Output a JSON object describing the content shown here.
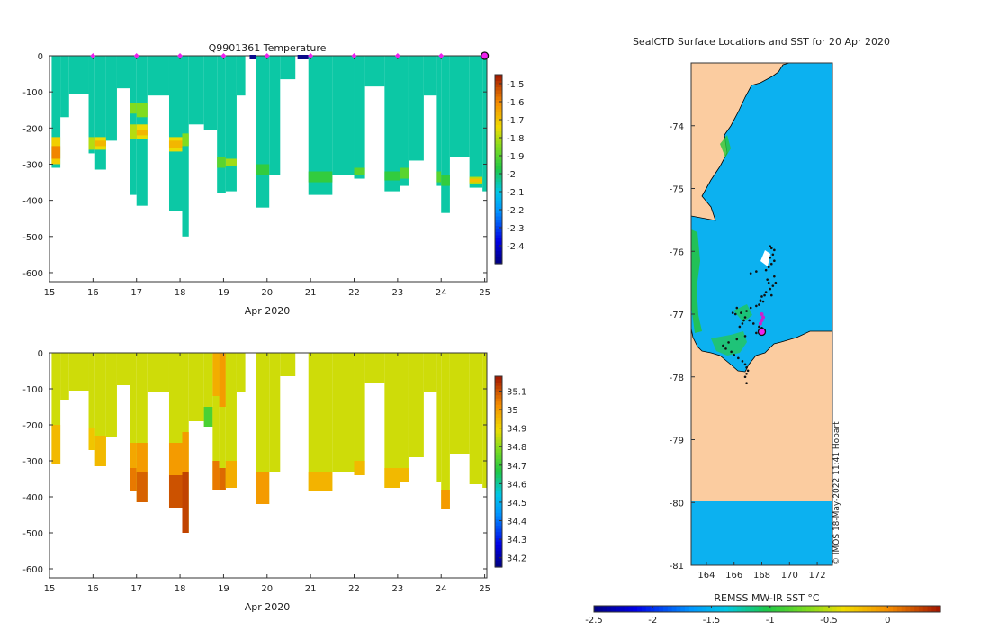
{
  "chart_data": [
    {
      "type": "heatmap",
      "title": "Q9901361  Temperature",
      "xlabel": "Apr 2020",
      "ylabel": "",
      "xlim": [
        15,
        25.05
      ],
      "ylim": [
        -625,
        0
      ],
      "xticks": [
        "15",
        "16",
        "17",
        "18",
        "19",
        "20",
        "21",
        "22",
        "23",
        "24",
        "25"
      ],
      "yticks": [
        "0",
        "-100",
        "-200",
        "-300",
        "-400",
        "-500",
        "-600"
      ],
      "colorbar": {
        "min": -2.5,
        "max": -1.45,
        "ticks": [
          "-1.5",
          "-1.6",
          "-1.7",
          "-1.8",
          "-1.9",
          "-2",
          "-2.1",
          "-2.2",
          "-2.3",
          "-2.4"
        ]
      },
      "base_value": -2.05,
      "surface_markers_x": [
        16,
        17,
        18,
        19,
        20,
        21,
        22,
        23,
        24
      ],
      "last_marker_x": 25,
      "surface_bad_segments": [
        [
          19.6,
          19.75
        ],
        [
          20.7,
          20.95
        ]
      ],
      "profiles": [
        {
          "x0": 15.05,
          "x1": 15.25,
          "depth": 310,
          "anom": [
            [
              225,
              300,
              -1.72
            ],
            [
              250,
              285,
              -1.6
            ]
          ]
        },
        {
          "x0": 15.25,
          "x1": 15.45,
          "depth": 170,
          "anom": []
        },
        {
          "x0": 15.45,
          "x1": 15.9,
          "depth": 105,
          "anom": []
        },
        {
          "x0": 15.9,
          "x1": 16.05,
          "depth": 270,
          "anom": [
            [
              225,
              260,
              -1.8
            ]
          ]
        },
        {
          "x0": 16.05,
          "x1": 16.3,
          "depth": 315,
          "anom": [
            [
              225,
              260,
              -1.75
            ],
            [
              235,
              250,
              -1.68
            ]
          ]
        },
        {
          "x0": 16.3,
          "x1": 16.55,
          "depth": 235,
          "anom": []
        },
        {
          "x0": 16.55,
          "x1": 16.85,
          "depth": 90,
          "anom": []
        },
        {
          "x0": 16.85,
          "x1": 17.0,
          "depth": 385,
          "anom": [
            [
              130,
              160,
              -1.85
            ],
            [
              190,
              230,
              -1.8
            ]
          ]
        },
        {
          "x0": 17.0,
          "x1": 17.25,
          "depth": 415,
          "anom": [
            [
              130,
              170,
              -1.85
            ],
            [
              190,
              230,
              -1.75
            ],
            [
              205,
              220,
              -1.68
            ]
          ]
        },
        {
          "x0": 17.25,
          "x1": 17.75,
          "depth": 110,
          "anom": []
        },
        {
          "x0": 17.75,
          "x1": 18.05,
          "depth": 430,
          "anom": [
            [
              225,
              265,
              -1.75
            ],
            [
              235,
              255,
              -1.68
            ]
          ]
        },
        {
          "x0": 18.05,
          "x1": 18.2,
          "depth": 500,
          "anom": [
            [
              215,
              250,
              -1.85
            ]
          ]
        },
        {
          "x0": 18.2,
          "x1": 18.55,
          "depth": 190,
          "anom": []
        },
        {
          "x0": 18.55,
          "x1": 18.85,
          "depth": 205,
          "anom": []
        },
        {
          "x0": 18.85,
          "x1": 19.05,
          "depth": 380,
          "anom": [
            [
              280,
              310,
              -1.9
            ]
          ]
        },
        {
          "x0": 19.05,
          "x1": 19.3,
          "depth": 375,
          "anom": [
            [
              285,
              305,
              -1.82
            ]
          ]
        },
        {
          "x0": 19.3,
          "x1": 19.5,
          "depth": 110,
          "anom": []
        },
        {
          "x0": 19.75,
          "x1": 20.05,
          "depth": 420,
          "anom": [
            [
              300,
              330,
              -1.95
            ]
          ]
        },
        {
          "x0": 20.05,
          "x1": 20.3,
          "depth": 330,
          "anom": []
        },
        {
          "x0": 20.3,
          "x1": 20.65,
          "depth": 65,
          "anom": []
        },
        {
          "x0": 20.95,
          "x1": 21.5,
          "depth": 385,
          "anom": [
            [
              320,
              350,
              -1.95
            ]
          ]
        },
        {
          "x0": 21.5,
          "x1": 22.0,
          "depth": 330,
          "anom": []
        },
        {
          "x0": 22.0,
          "x1": 22.25,
          "depth": 340,
          "anom": [
            [
              310,
              330,
              -1.9
            ]
          ]
        },
        {
          "x0": 22.25,
          "x1": 22.7,
          "depth": 85,
          "anom": []
        },
        {
          "x0": 22.7,
          "x1": 23.05,
          "depth": 375,
          "anom": [
            [
              320,
              345,
              -1.95
            ]
          ]
        },
        {
          "x0": 23.05,
          "x1": 23.25,
          "depth": 360,
          "anom": [
            [
              310,
              340,
              -1.9
            ]
          ]
        },
        {
          "x0": 23.25,
          "x1": 23.6,
          "depth": 290,
          "anom": []
        },
        {
          "x0": 23.6,
          "x1": 23.9,
          "depth": 110,
          "anom": []
        },
        {
          "x0": 23.9,
          "x1": 24.0,
          "depth": 360,
          "anom": [
            [
              320,
              350,
              -1.9
            ]
          ]
        },
        {
          "x0": 24.0,
          "x1": 24.2,
          "depth": 435,
          "anom": [
            [
              330,
              360,
              -1.95
            ]
          ]
        },
        {
          "x0": 24.2,
          "x1": 24.65,
          "depth": 280,
          "anom": []
        },
        {
          "x0": 24.65,
          "x1": 24.95,
          "depth": 365,
          "anom": [
            [
              335,
              355,
              -1.8
            ],
            [
              340,
              350,
              -1.7
            ]
          ]
        },
        {
          "x0": 24.95,
          "x1": 25.05,
          "depth": 375,
          "anom": []
        }
      ]
    },
    {
      "type": "heatmap",
      "title": "",
      "xlabel": "Apr 2020",
      "ylabel": "",
      "xlim": [
        15,
        25.05
      ],
      "ylim": [
        -625,
        0
      ],
      "xticks": [
        "15",
        "16",
        "17",
        "18",
        "19",
        "20",
        "21",
        "22",
        "23",
        "24",
        "25"
      ],
      "yticks": [
        "0",
        "-100",
        "-200",
        "-300",
        "-400",
        "-500",
        "-600"
      ],
      "colorbar": {
        "min": 34.15,
        "max": 35.18,
        "ticks": [
          "35.1",
          "35",
          "34.9",
          "34.8",
          "34.7",
          "34.6",
          "34.5",
          "34.4",
          "34.3",
          "34.2"
        ]
      },
      "base_value": 34.86,
      "profiles": [
        {
          "x0": 15.05,
          "x1": 15.25,
          "depth": 310,
          "anom": [
            [
              200,
              310,
              34.95
            ]
          ]
        },
        {
          "x0": 15.25,
          "x1": 15.45,
          "depth": 130,
          "anom": []
        },
        {
          "x0": 15.45,
          "x1": 15.9,
          "depth": 105,
          "anom": []
        },
        {
          "x0": 15.9,
          "x1": 16.05,
          "depth": 270,
          "anom": [
            [
              210,
              270,
              34.93
            ]
          ]
        },
        {
          "x0": 16.05,
          "x1": 16.3,
          "depth": 315,
          "anom": [
            [
              230,
              315,
              34.95
            ]
          ]
        },
        {
          "x0": 16.3,
          "x1": 16.55,
          "depth": 235,
          "anom": []
        },
        {
          "x0": 16.55,
          "x1": 16.85,
          "depth": 90,
          "anom": []
        },
        {
          "x0": 16.85,
          "x1": 17.0,
          "depth": 385,
          "anom": [
            [
              250,
              320,
              34.98
            ],
            [
              320,
              385,
              35.05
            ]
          ]
        },
        {
          "x0": 17.0,
          "x1": 17.25,
          "depth": 415,
          "anom": [
            [
              250,
              330,
              35.0
            ],
            [
              330,
              415,
              35.08
            ]
          ]
        },
        {
          "x0": 17.25,
          "x1": 17.75,
          "depth": 110,
          "anom": []
        },
        {
          "x0": 17.75,
          "x1": 18.05,
          "depth": 430,
          "anom": [
            [
              250,
              340,
              35.0
            ],
            [
              340,
              430,
              35.1
            ]
          ]
        },
        {
          "x0": 18.05,
          "x1": 18.2,
          "depth": 500,
          "anom": [
            [
              220,
              330,
              35.0
            ],
            [
              330,
              500,
              35.12
            ]
          ]
        },
        {
          "x0": 18.2,
          "x1": 18.55,
          "depth": 190,
          "anom": []
        },
        {
          "x0": 18.55,
          "x1": 18.75,
          "depth": 205,
          "anom": [
            [
              150,
              205,
              34.72
            ]
          ]
        },
        {
          "x0": 18.75,
          "x1": 18.9,
          "depth": 380,
          "anom": [
            [
              0,
              120,
              34.97
            ],
            [
              300,
              380,
              35.05
            ]
          ]
        },
        {
          "x0": 18.9,
          "x1": 19.05,
          "depth": 380,
          "anom": [
            [
              0,
              150,
              35.0
            ],
            [
              320,
              380,
              35.07
            ]
          ]
        },
        {
          "x0": 19.05,
          "x1": 19.3,
          "depth": 375,
          "anom": [
            [
              300,
              375,
              34.97
            ]
          ]
        },
        {
          "x0": 19.3,
          "x1": 19.5,
          "depth": 110,
          "anom": []
        },
        {
          "x0": 19.75,
          "x1": 20.05,
          "depth": 420,
          "anom": [
            [
              330,
              420,
              35.0
            ]
          ]
        },
        {
          "x0": 20.05,
          "x1": 20.3,
          "depth": 330,
          "anom": []
        },
        {
          "x0": 20.3,
          "x1": 20.65,
          "depth": 65,
          "anom": []
        },
        {
          "x0": 20.95,
          "x1": 21.5,
          "depth": 385,
          "anom": [
            [
              330,
              385,
              34.96
            ]
          ]
        },
        {
          "x0": 21.5,
          "x1": 22.0,
          "depth": 330,
          "anom": []
        },
        {
          "x0": 22.0,
          "x1": 22.25,
          "depth": 340,
          "anom": [
            [
              300,
              340,
              34.95
            ]
          ]
        },
        {
          "x0": 22.25,
          "x1": 22.7,
          "depth": 85,
          "anom": []
        },
        {
          "x0": 22.7,
          "x1": 23.05,
          "depth": 375,
          "anom": [
            [
              320,
              375,
              34.95
            ]
          ]
        },
        {
          "x0": 23.05,
          "x1": 23.25,
          "depth": 360,
          "anom": [
            [
              320,
              360,
              34.95
            ]
          ]
        },
        {
          "x0": 23.25,
          "x1": 23.6,
          "depth": 290,
          "anom": []
        },
        {
          "x0": 23.6,
          "x1": 23.9,
          "depth": 110,
          "anom": []
        },
        {
          "x0": 23.9,
          "x1": 24.0,
          "depth": 360,
          "anom": []
        },
        {
          "x0": 24.0,
          "x1": 24.2,
          "depth": 435,
          "anom": [
            [
              380,
              435,
              35.0
            ]
          ]
        },
        {
          "x0": 24.2,
          "x1": 24.65,
          "depth": 280,
          "anom": []
        },
        {
          "x0": 24.65,
          "x1": 24.95,
          "depth": 365,
          "anom": []
        },
        {
          "x0": 24.95,
          "x1": 25.05,
          "depth": 375,
          "anom": []
        }
      ]
    },
    {
      "type": "map",
      "title": "SealCTD Surface Locations and SST for 20 Apr 2020",
      "lon_range": [
        162.9,
        173.1
      ],
      "lat_range": [
        -81.0,
        -73.0
      ],
      "xticks": [
        "164",
        "166",
        "168",
        "170",
        "172"
      ],
      "yticks": [
        "-74",
        "-75",
        "-76",
        "-77",
        "-78",
        "-79",
        "-80",
        "-81"
      ],
      "credit": "© IMOS 18-May-2022 11:41 Hobart",
      "colorbar": {
        "label": "REMSS MW-IR SST °C",
        "min": -2.5,
        "max": 0.45,
        "ticks": [
          "-2.5",
          "-2",
          "-1.5",
          "-1",
          "-0.5",
          "0"
        ]
      },
      "colors": {
        "land": "#fbcca0",
        "ocean": "#0cb1f0",
        "ice_shelf_ocean": "#0cb1f0"
      },
      "track": [
        [
          168.6,
          -75.92
        ],
        [
          168.7,
          -75.95
        ],
        [
          168.9,
          -75.98
        ],
        [
          168.8,
          -76.05
        ],
        [
          168.6,
          -76.1
        ],
        [
          168.7,
          -76.2
        ],
        [
          168.9,
          -76.15
        ],
        [
          168.5,
          -76.25
        ],
        [
          168.3,
          -76.3
        ],
        [
          167.6,
          -76.32
        ],
        [
          167.2,
          -76.35
        ],
        [
          168.9,
          -76.4
        ],
        [
          169.0,
          -76.5
        ],
        [
          168.8,
          -76.55
        ],
        [
          168.6,
          -76.6
        ],
        [
          168.3,
          -76.65
        ],
        [
          168.2,
          -76.7
        ],
        [
          168.0,
          -76.72
        ],
        [
          167.9,
          -76.78
        ],
        [
          168.1,
          -76.8
        ],
        [
          167.8,
          -76.85
        ],
        [
          167.6,
          -76.87
        ],
        [
          167.2,
          -76.9
        ],
        [
          166.9,
          -76.95
        ],
        [
          166.5,
          -76.98
        ],
        [
          166.1,
          -77.0
        ],
        [
          166.8,
          -77.05
        ],
        [
          167.1,
          -77.1
        ],
        [
          167.4,
          -77.15
        ],
        [
          167.8,
          -77.2
        ],
        [
          168.0,
          -77.22
        ],
        [
          168.1,
          -77.28
        ],
        [
          167.6,
          -77.3
        ],
        [
          166.8,
          -77.35
        ],
        [
          166.2,
          -77.4
        ],
        [
          165.6,
          -77.45
        ],
        [
          165.2,
          -77.5
        ],
        [
          165.4,
          -77.55
        ],
        [
          165.8,
          -77.6
        ],
        [
          166.0,
          -77.65
        ],
        [
          166.3,
          -77.7
        ],
        [
          166.6,
          -77.75
        ],
        [
          166.8,
          -77.8
        ],
        [
          166.9,
          -77.85
        ],
        [
          167.0,
          -77.9
        ],
        [
          166.9,
          -77.95
        ],
        [
          166.8,
          -78.0
        ],
        [
          166.9,
          -78.1
        ],
        [
          166.6,
          -77.15
        ],
        [
          166.4,
          -77.2
        ],
        [
          166.7,
          -77.1
        ],
        [
          165.9,
          -76.98
        ],
        [
          166.2,
          -76.9
        ],
        [
          168.4,
          -76.45
        ],
        [
          168.5,
          -76.5
        ],
        [
          168.7,
          -76.7
        ],
        [
          168.0,
          -77.25
        ],
        [
          168.2,
          -77.25
        ]
      ],
      "track_highlight": [
        [
          168.0,
          -77.0
        ],
        [
          168.1,
          -77.05
        ],
        [
          167.9,
          -77.15
        ],
        [
          168.0,
          -77.1
        ]
      ],
      "last_position": [
        168.0,
        -77.28
      ]
    }
  ]
}
